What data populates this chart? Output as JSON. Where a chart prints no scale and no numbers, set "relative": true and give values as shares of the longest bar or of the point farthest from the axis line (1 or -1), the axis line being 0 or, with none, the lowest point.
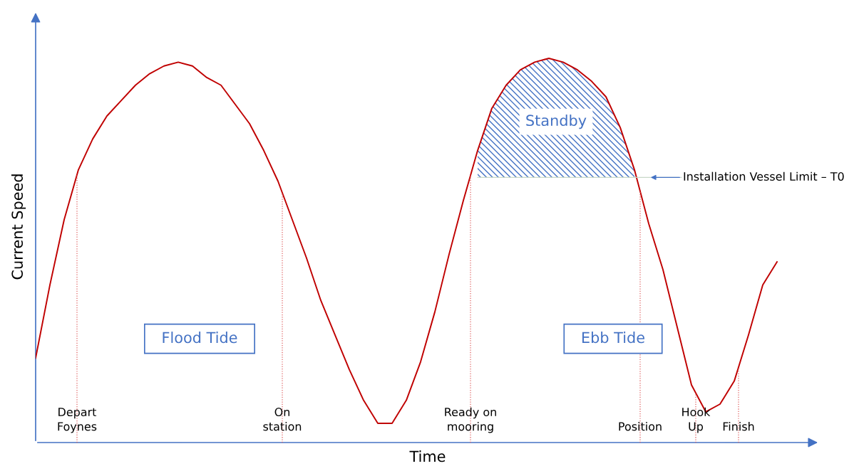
{
  "chart_data": {
    "type": "line",
    "relative": true,
    "xlabel": "Time",
    "ylabel": "Current Speed",
    "legend": false,
    "marker": "none",
    "line_style": "solid",
    "categories": [
      null,
      null,
      null,
      null,
      null,
      null,
      null,
      null,
      null,
      null,
      null,
      null,
      null,
      null,
      null,
      null,
      null,
      null,
      null,
      null,
      null,
      null,
      null,
      null,
      null,
      null,
      null,
      null,
      null,
      null,
      null,
      null,
      null,
      null,
      null,
      null,
      null,
      null,
      null,
      null,
      null,
      null,
      null,
      null,
      null,
      null,
      null,
      null,
      null,
      null,
      null,
      null,
      null,
      null,
      null,
      null
    ],
    "series": [
      {
        "color": "#c00000",
        "values": [
          0.22,
          0.41,
          0.58,
          0.71,
          0.79,
          0.85,
          0.89,
          0.93,
          0.96,
          0.98,
          0.99,
          0.98,
          0.95,
          0.93,
          0.88,
          0.83,
          0.76,
          0.68,
          0.58,
          0.48,
          0.37,
          0.28,
          0.19,
          0.11,
          0.05,
          0.05,
          0.11,
          0.21,
          0.34,
          0.49,
          0.63,
          0.76,
          0.87,
          0.93,
          0.97,
          0.99,
          1.0,
          0.99,
          0.97,
          0.94,
          0.9,
          0.82,
          0.71,
          0.57,
          0.45,
          0.3,
          0.15,
          0.08,
          0.1,
          0.16,
          0.28,
          0.41,
          0.47,
          null,
          null,
          null
        ]
      },
      {
        "name": "Standby",
        "type": "area",
        "color": "#4472c4",
        "values": [
          null,
          null,
          null,
          null,
          null,
          null,
          null,
          null,
          null,
          null,
          null,
          null,
          null,
          null,
          null,
          null,
          null,
          null,
          null,
          null,
          null,
          null,
          null,
          null,
          null,
          null,
          null,
          null,
          null,
          null,
          null,
          0.76,
          0.87,
          0.93,
          0.97,
          0.99,
          1.0,
          0.99,
          0.97,
          0.94,
          0.9,
          0.82,
          0.71,
          null,
          null,
          null,
          null,
          null,
          null,
          null,
          null,
          null,
          null,
          null,
          null,
          null
        ]
      }
    ],
    "ref_lines": [
      {
        "axis": "y",
        "value": 0.69,
        "label": "Installation Vessel Limit – T0",
        "color": "#c8d8c8"
      }
    ],
    "annotations": [
      "Flood Tide",
      "Ebb Tide",
      "Depart\nFoynes",
      "On\nstation",
      "Ready on\nmooring",
      "Position",
      "Hook\nUp",
      "Finish"
    ]
  }
}
